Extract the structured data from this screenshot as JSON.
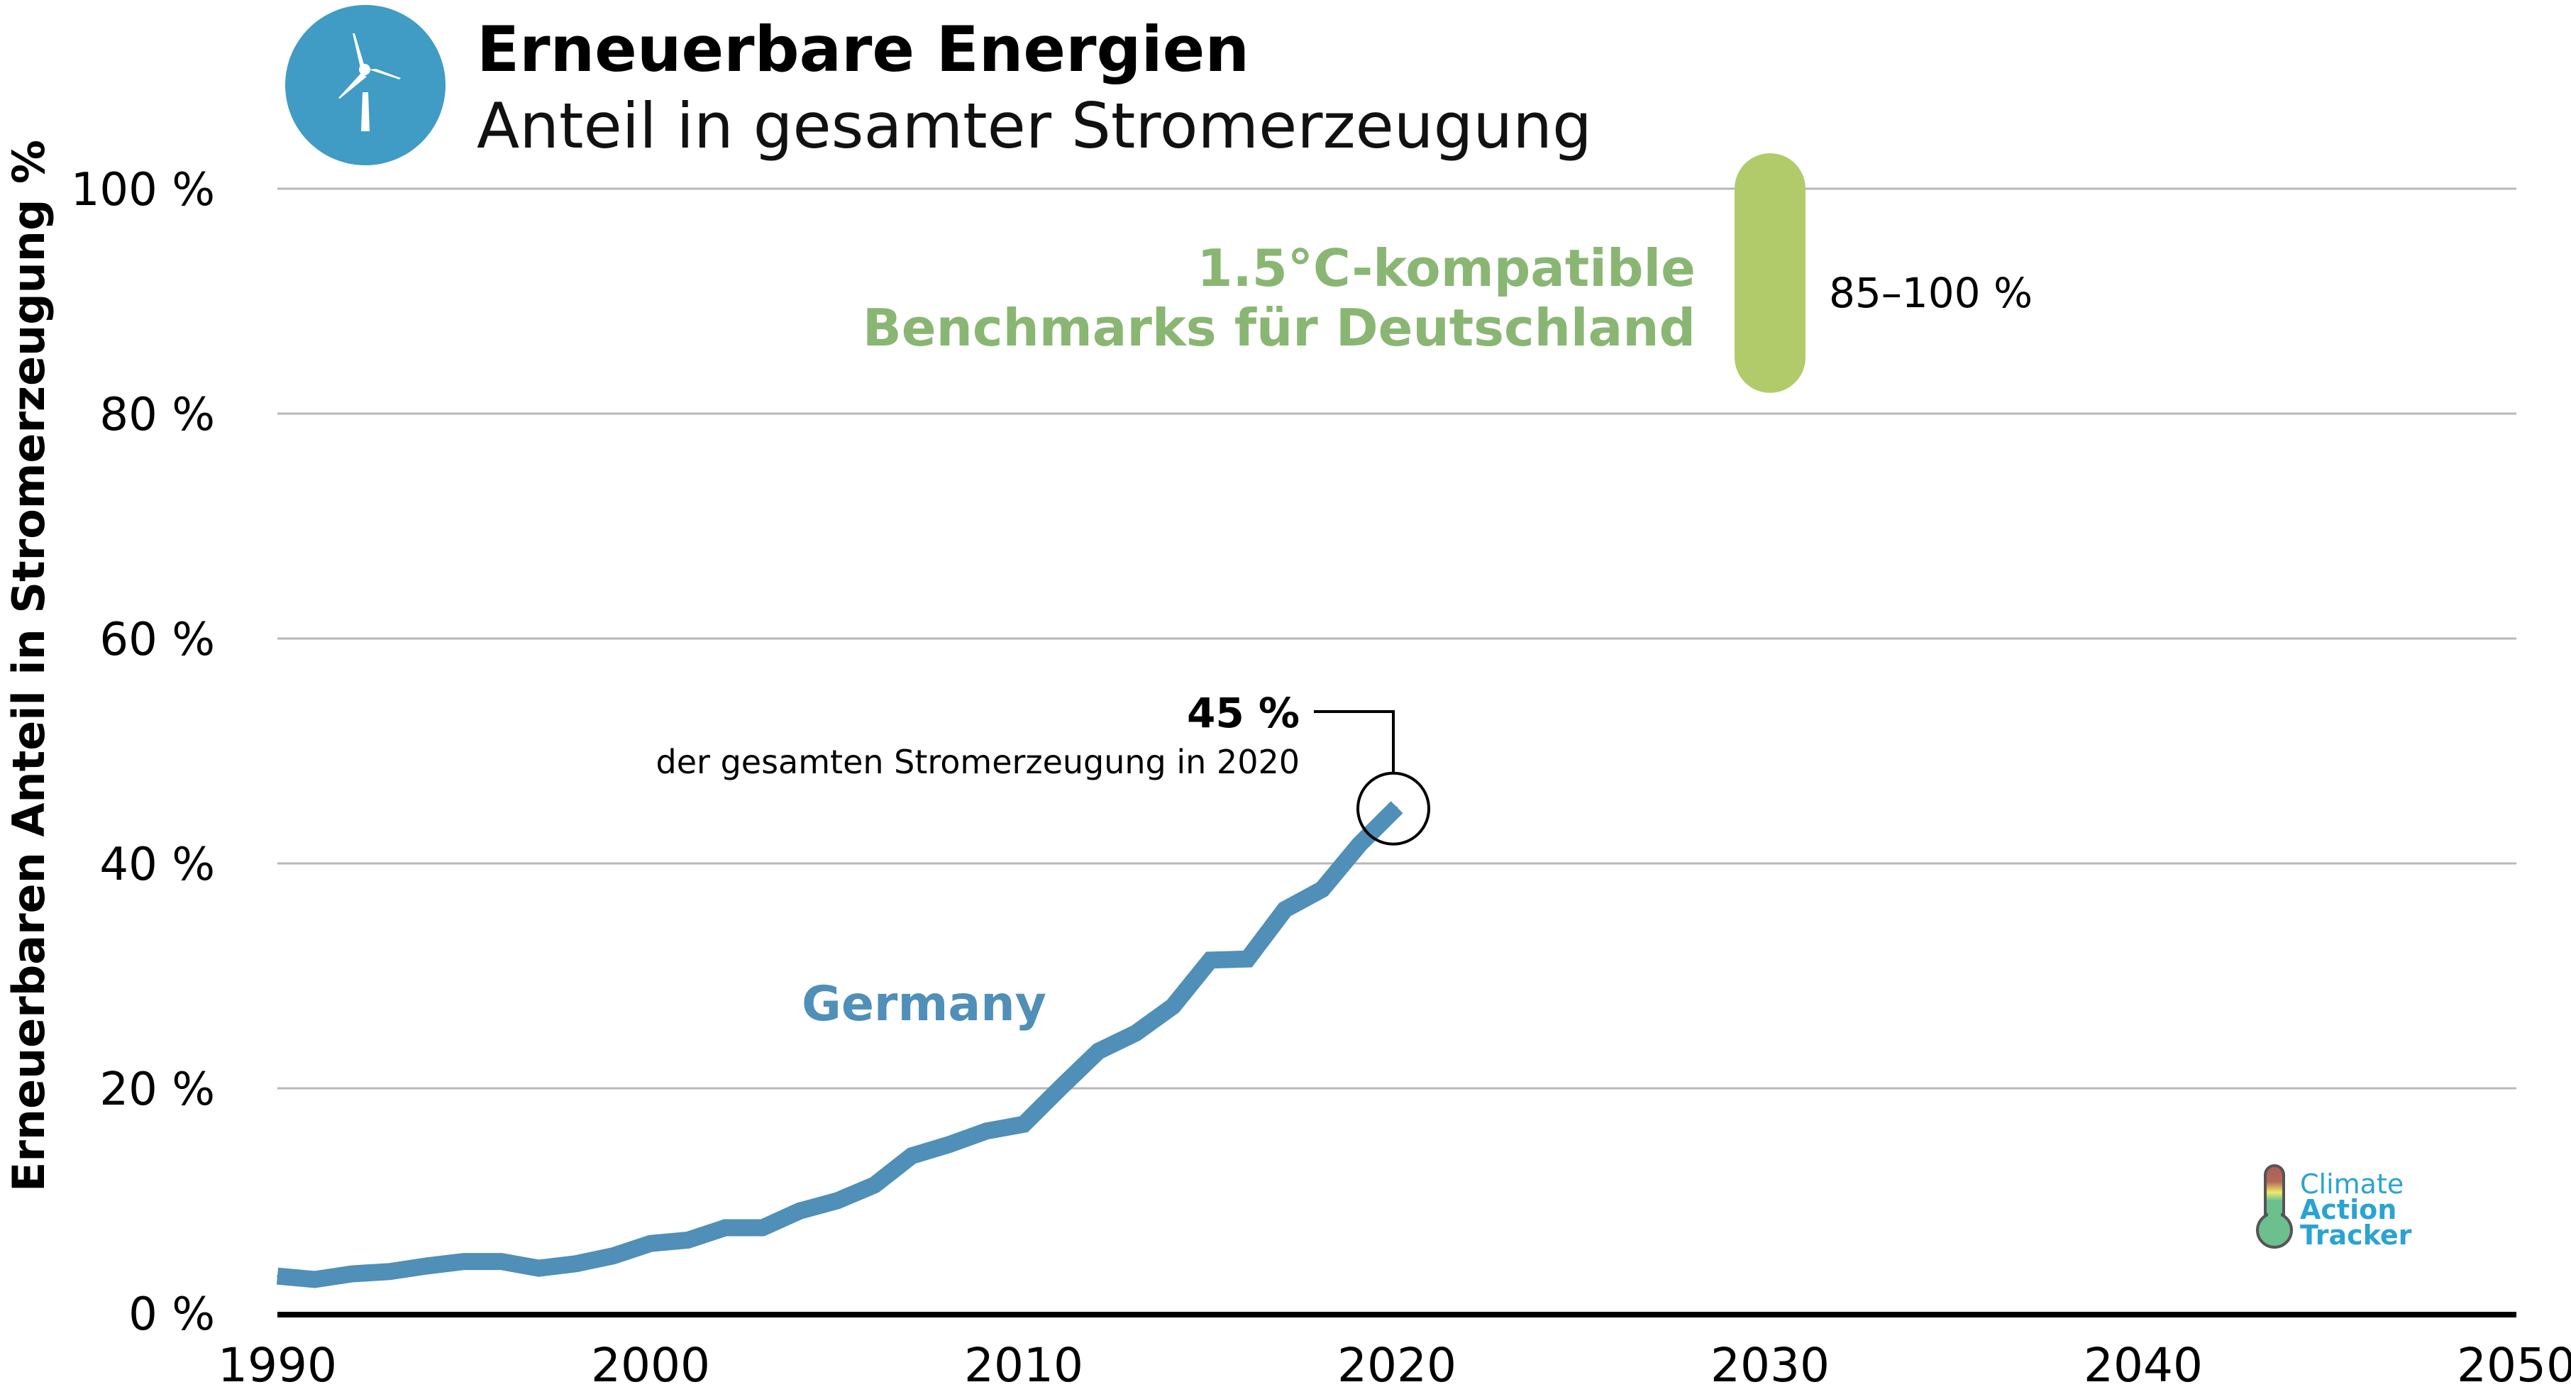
{
  "header": {
    "title": "Erneuerbare Energien",
    "subtitle": "Anteil in gesamter Stromerzeugung",
    "icon": "wind-turbine-icon",
    "icon_color": "#409bc5"
  },
  "chart_data": {
    "type": "line",
    "title": "Erneuerbare Energien",
    "subtitle": "Anteil in gesamter Stromerzeugung",
    "xlabel": "",
    "ylabel": "Erneuerbaren Anteil in Stromerzeugung %",
    "xlim": [
      1990,
      2050
    ],
    "ylim": [
      0,
      100
    ],
    "x_ticks": [
      1990,
      2000,
      2010,
      2020,
      2030,
      2040,
      2050
    ],
    "x_tick_labels": [
      "1990",
      "2000",
      "2010",
      "2020",
      "2030",
      "2040",
      "2050"
    ],
    "y_ticks": [
      0,
      20,
      40,
      60,
      80,
      100
    ],
    "y_tick_labels": [
      "0 %",
      "20 %",
      "40 %",
      "60 %",
      "80 %",
      "100 %"
    ],
    "grid": true,
    "series": [
      {
        "name": "Germany",
        "color": "#4f8fb8",
        "x": [
          1990,
          1991,
          1992,
          1993,
          1994,
          1995,
          1996,
          1997,
          1998,
          1999,
          2000,
          2001,
          2002,
          2003,
          2004,
          2005,
          2006,
          2007,
          2008,
          2009,
          2010,
          2011,
          2012,
          2013,
          2014,
          2015,
          2016,
          2017,
          2018,
          2019,
          2020
        ],
        "values": [
          3.3,
          3.0,
          3.5,
          3.7,
          4.2,
          4.6,
          4.6,
          4.0,
          4.4,
          5.1,
          6.2,
          6.5,
          7.6,
          7.6,
          9.1,
          10.0,
          11.4,
          14.0,
          15.0,
          16.2,
          16.8,
          20.1,
          23.3,
          24.9,
          27.3,
          31.4,
          31.5,
          35.9,
          37.7,
          41.7,
          45.0
        ]
      }
    ],
    "benchmark": {
      "label_line1": "1.5°C-kompatible",
      "label_line2": "Benchmarks für Deutschland",
      "year": 2030,
      "low": 85,
      "high": 100,
      "range_label": "85–100 %",
      "color": "#b2cb6a",
      "text_color": "#8ab673"
    },
    "annotations": [
      {
        "year": 2020,
        "value": 45,
        "value_label": "45 %",
        "text": "der gesamten Stromerzeugung in 2020"
      }
    ]
  },
  "logo": {
    "line1": "Climate",
    "line2": "Action",
    "line3": "Tracker",
    "color": "#2aa3d3"
  }
}
